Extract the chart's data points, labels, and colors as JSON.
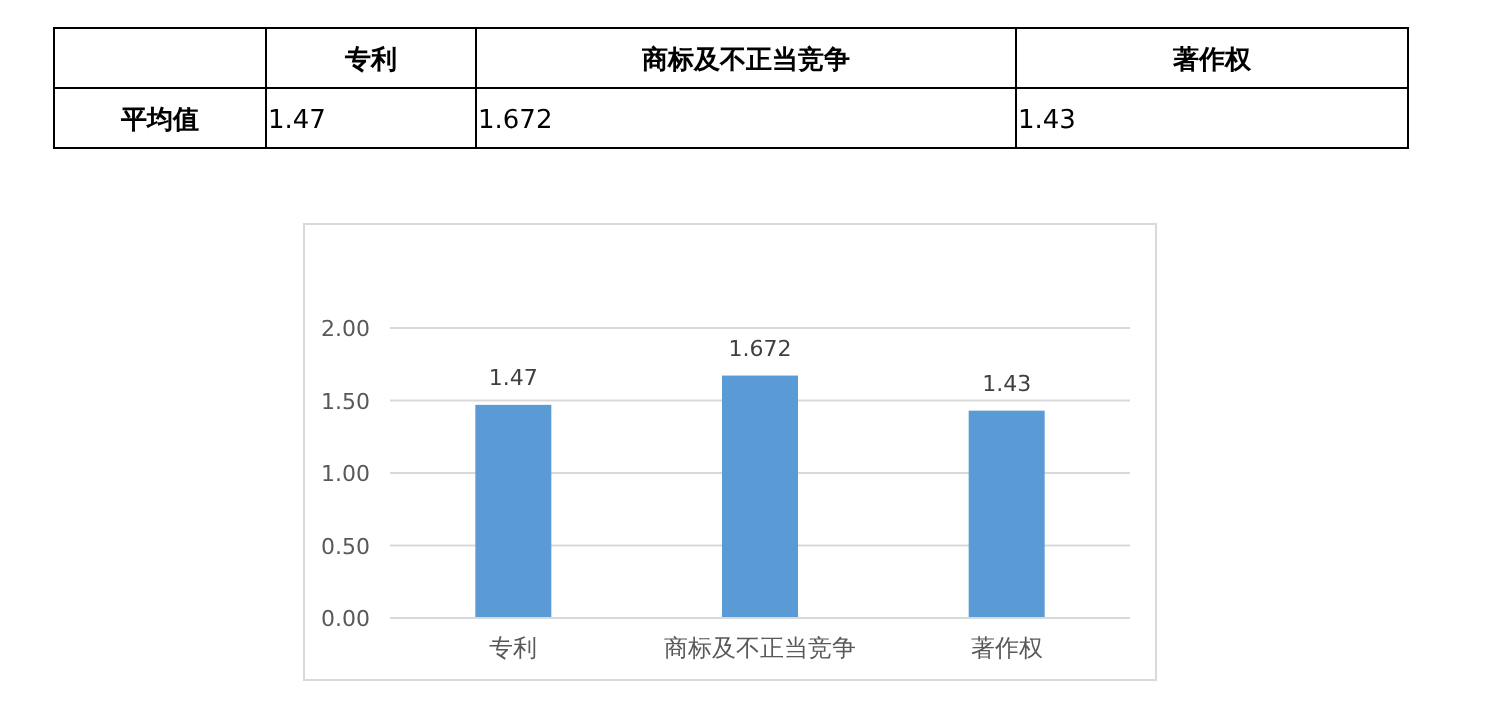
{
  "chart_data": {
    "type": "bar",
    "categories": [
      "专利",
      "商标及不正当竞争",
      "著作权"
    ],
    "series": [
      {
        "name": "平均值",
        "color": "#5b9bd5",
        "values": [
          1.47,
          1.672,
          1.43
        ],
        "value_labels": [
          "1.47",
          "1.672",
          "1.43"
        ]
      }
    ],
    "ylim": [
      0,
      2
    ],
    "yticks": [
      {
        "value": 0,
        "label": "0.00"
      },
      {
        "value": 0.5,
        "label": "0.50"
      },
      {
        "value": 1,
        "label": "1.00"
      },
      {
        "value": 1.5,
        "label": "1.50"
      },
      {
        "value": 2,
        "label": "2.00"
      }
    ],
    "grid": "y",
    "annotations": [
      "1.47",
      "1.672",
      "1.43"
    ]
  }
}
